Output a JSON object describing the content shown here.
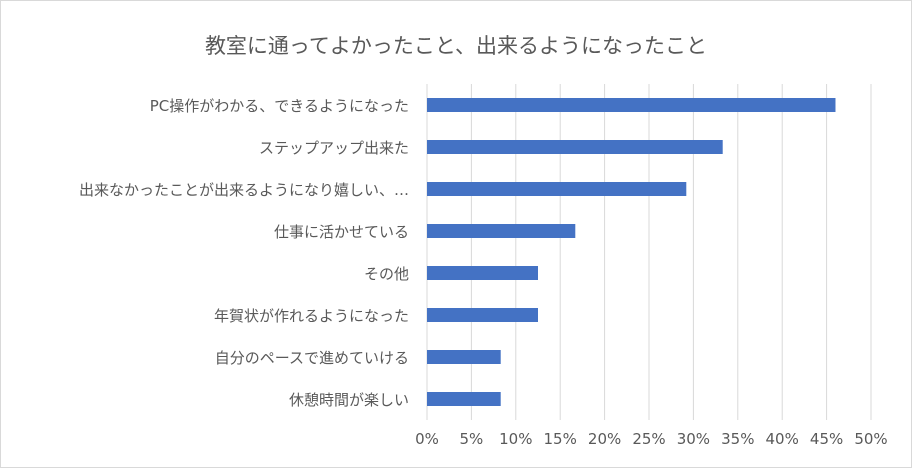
{
  "chart_data": {
    "type": "bar",
    "orientation": "horizontal",
    "title": "教室に通ってよかったこと、出来るようになったこと",
    "categories": [
      "PC操作がわかる、できるようになった",
      "ステップアップ出来た",
      "出来なかったことが出来るようになり嬉しい、…",
      "仕事に活かせている",
      "その他",
      "年賀状が作れるようになった",
      "自分のペースで進めていける",
      "休憩時間が楽しい"
    ],
    "values": [
      46,
      33.3,
      29.2,
      16.7,
      12.5,
      12.5,
      8.3,
      8.3
    ],
    "xlim": [
      0,
      50
    ],
    "x_ticks": [
      "0%",
      "5%",
      "10%",
      "15%",
      "20%",
      "25%",
      "30%",
      "35%",
      "40%",
      "45%",
      "50%"
    ],
    "grid": "vertical",
    "legend": "none",
    "bar_color": "#4472c4"
  }
}
